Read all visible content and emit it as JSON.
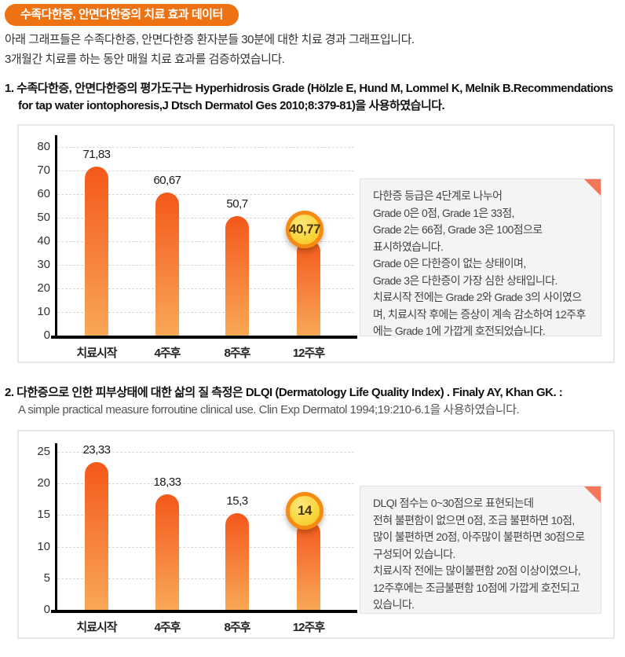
{
  "page": {
    "badge": "수족다한증, 안면다한증의 치료 효과 데이터",
    "intro_line1": "아래 그래프들은 수족다한증, 안면다한증 환자분들 30분에 대한 치료 경과 그래프입니다.",
    "intro_line2": "3개월간 치료를 하는 동안 매월 치료 효과를 검증하였습니다."
  },
  "section1": {
    "heading_line1": "1. 수족다한증, 안면다한증의 평가도구는 Hyperhidrosis Grade (Hölzle E, Hund M, Lommel K, Melnik B.Recommendations",
    "heading_line2": "for tap water iontophoresis,J Dtsch Dermatol Ges 2010;8:379-81)을 사용하였습니다.",
    "note": "다한증 등급은 4단계로 나누어\nGrade 0은 0점, Grade 1은 33점,\nGrade 2는 66점, Grade 3은 100점으로\n표시하였습니다.\nGrade 0은 다한증이 없는 상태이며,\nGrade 3은 다한증이 가장 심한 상태입니다.\n치료시작 전에는 Grade 2와 Grade 3의 사이였으\n며, 치료시작 후에는 증상이 계속 감소하여 12주후\n에는 Grade 1에 가깝게 호전되었습니다."
  },
  "section2": {
    "heading_line1": "2. 다한증으로 인한 피부상태에 대한 삶의 질 측정은 DLQI (Dermatology Life Quality Index) . Finaly AY, Khan GK. :",
    "heading_line2": "A simple practical measure forroutine clinical use. Clin Exp Dermatol 1994;19:210-6.1을 사용하였습니다.",
    "note": "DLQI 점수는 0~30점으로 표현되는데\n전혀 불편함이 없으면 0점, 조금 불편하면 10점,\n많이 불편하면 20점, 아주많이 불편하면 30점으로\n구성되어 있습니다.\n치료시작 전에는 많이불편함 20점 이상이였으나,\n12주후에는 조금불편함 10점에 가깝게 호전되고\n있습니다."
  },
  "chart_data": [
    {
      "type": "bar",
      "categories": [
        "치료시작",
        "4주후",
        "8주후",
        "12주후"
      ],
      "values": [
        71.83,
        60.67,
        50.7,
        40.77
      ],
      "value_labels": [
        "71,83",
        "60,67",
        "50,7",
        "40,77"
      ],
      "yticks": [
        0,
        10,
        20,
        30,
        40,
        50,
        60,
        70,
        80
      ],
      "ylim": [
        0,
        80
      ],
      "grid": "horizontal-dashed",
      "legend": "none",
      "highlight_last": true
    },
    {
      "type": "bar",
      "categories": [
        "치료시작",
        "4주후",
        "8주후",
        "12주후"
      ],
      "values": [
        23.33,
        18.33,
        15.3,
        14
      ],
      "value_labels": [
        "23,33",
        "18,33",
        "15,3",
        "14"
      ],
      "yticks": [
        0,
        5,
        10,
        15,
        20,
        25
      ],
      "ylim": [
        0,
        25
      ],
      "grid": "horizontal-dashed",
      "legend": "none",
      "highlight_last": true
    }
  ],
  "colors": {
    "badge_bg": "#ee7211",
    "bar_top": "#f4581b",
    "bar_bottom": "#f9a855",
    "highlight_fill": "#f9d43a",
    "highlight_ring": "#f58a15",
    "note_bg": "#f4f4f4",
    "note_fold": "#f4775a",
    "gridline": "#d8d8d8",
    "axis": "#000000"
  }
}
